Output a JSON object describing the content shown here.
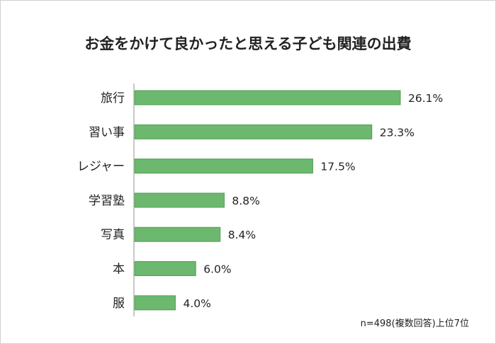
{
  "chart_data": {
    "type": "bar",
    "orientation": "horizontal",
    "title": "お金をかけて良かったと思える子ども関連の出費",
    "categories": [
      "旅行",
      "習い事",
      "レジャー",
      "学習塾",
      "写真",
      "本",
      "服"
    ],
    "values": [
      26.1,
      23.3,
      17.5,
      8.8,
      8.4,
      6.0,
      4.0
    ],
    "labels": [
      "26.1%",
      "23.3%",
      "17.5%",
      "8.8%",
      "8.4%",
      "6.0%",
      "4.0%"
    ],
    "unit": "%",
    "xlim": [
      0,
      30
    ],
    "grid": false,
    "note": "n=498(複数回答)上位7位",
    "colors": {
      "bar": "#6cb86e",
      "bar_border": "#4f9f52",
      "axis": "#c8c8c8"
    }
  }
}
